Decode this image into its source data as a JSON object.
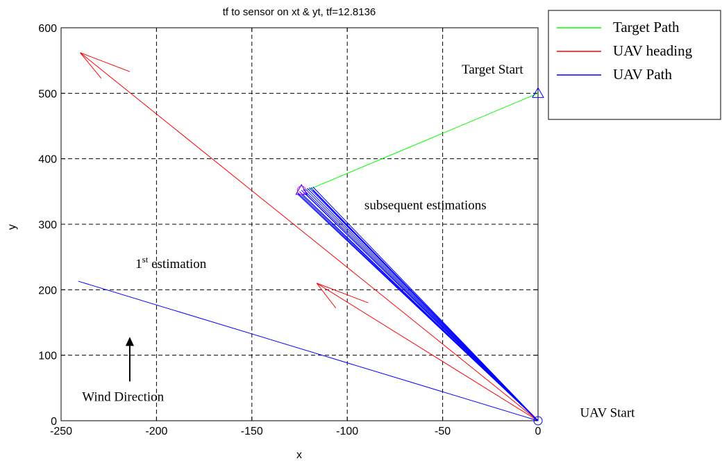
{
  "chart_data": {
    "type": "line",
    "title": "tf to sensor on xt & yt, tf=12.8136",
    "xlabel": "x",
    "ylabel": "y",
    "xlim": [
      -250,
      0
    ],
    "ylim": [
      0,
      600
    ],
    "xticks": [
      -250,
      -200,
      -150,
      -100,
      -50,
      0
    ],
    "yticks": [
      0,
      100,
      200,
      300,
      400,
      500,
      600
    ],
    "grid": "dashed",
    "legend_position": "outside-top-right",
    "legend": [
      {
        "label": "Target Path",
        "color": "#00ff00"
      },
      {
        "label": "UAV heading",
        "color": "#ff0000"
      },
      {
        "label": "UAV Path",
        "color": "#0000ff"
      }
    ],
    "series": [
      {
        "name": "Target Path",
        "color": "#00ff00",
        "x": [
          0,
          -121
        ],
        "y": [
          500,
          352
        ]
      },
      {
        "name": "UAV heading",
        "color": "#ff0000",
        "x": [
          0,
          -240
        ],
        "y": [
          0,
          562
        ]
      },
      {
        "name": "UAV heading",
        "color": "#ff0000",
        "x": [
          0,
          -116
        ],
        "y": [
          0,
          210
        ]
      },
      {
        "name": "UAV Path",
        "color": "#0000ff",
        "x": [
          0,
          -241
        ],
        "y": [
          0,
          213
        ]
      }
    ],
    "uav_path_fan": [
      {
        "x": -126,
        "y": 346
      },
      {
        "x": -126,
        "y": 348
      },
      {
        "x": -125,
        "y": 350
      },
      {
        "x": -124,
        "y": 352
      },
      {
        "x": -123,
        "y": 353
      },
      {
        "x": -122,
        "y": 354
      },
      {
        "x": -121,
        "y": 355
      },
      {
        "x": -120,
        "y": 356
      },
      {
        "x": -119,
        "y": 356
      },
      {
        "x": -118,
        "y": 357
      },
      {
        "x": -124,
        "y": 345
      },
      {
        "x": -122,
        "y": 347
      },
      {
        "x": -118,
        "y": 352
      }
    ],
    "arrowheads": [
      {
        "tip": [
          -240,
          562
        ],
        "wings": [
          [
            -214,
            533
          ],
          [
            -229,
            523
          ]
        ],
        "color": "#ff0000"
      },
      {
        "tip": [
          -116,
          210
        ],
        "wings": [
          [
            -89,
            180
          ],
          [
            -106,
            172
          ]
        ],
        "color": "#ff0000"
      }
    ],
    "markers": [
      {
        "shape": "triangle",
        "x": 0,
        "y": 500,
        "color": "#0000ff"
      },
      {
        "shape": "triangle",
        "x": -124,
        "y": 352,
        "color": "#0000ff"
      },
      {
        "shape": "circle",
        "x": -124,
        "y": 352,
        "color": "#ff00ff"
      },
      {
        "shape": "circle",
        "x": 0,
        "y": 0,
        "color": "#0000ff"
      }
    ],
    "annotations": [
      {
        "text": "Target Start",
        "x": -40,
        "y": 530
      },
      {
        "text": "subsequent estimations",
        "x": -91,
        "y": 323
      },
      {
        "text": "1",
        "sup": "st",
        "rest": " estimation",
        "x": -211,
        "y": 233
      },
      {
        "text": "Wind Direction",
        "x": -239,
        "y": 30
      },
      {
        "text": "UAV Start",
        "x": 22,
        "y": 6
      }
    ],
    "wind_arrow": {
      "from": [
        -214,
        60
      ],
      "to": [
        -214,
        128
      ],
      "color": "#000000"
    }
  }
}
